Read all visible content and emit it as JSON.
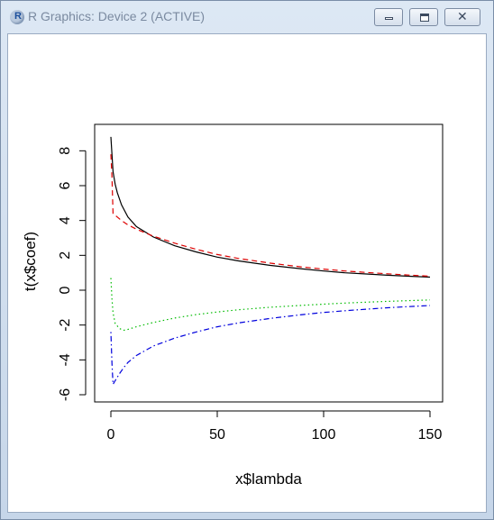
{
  "window": {
    "title": "R Graphics: Device 2 (ACTIVE)",
    "title_icon": "r-logo-icon",
    "buttons": {
      "minimize": "minimize-icon",
      "maximize": "maximize-icon",
      "close": "close-icon"
    }
  },
  "chart_data": {
    "type": "line",
    "xlabel": "x$lambda",
    "ylabel": "t(x$coef)",
    "xlim": [
      0,
      150
    ],
    "ylim": [
      -6,
      9
    ],
    "x_ticks": [
      0,
      50,
      100,
      150
    ],
    "y_ticks": [
      -6,
      -4,
      -2,
      0,
      2,
      4,
      6,
      8
    ],
    "grid": false,
    "series": [
      {
        "color": "#000000",
        "dash": "solid",
        "x": [
          0,
          1,
          2,
          3,
          5,
          8,
          12,
          20,
          30,
          40,
          50,
          60,
          75,
          90,
          100,
          110,
          120,
          130,
          140,
          150
        ],
        "y": [
          8.8,
          6.8,
          6.1,
          5.6,
          4.9,
          4.2,
          3.65,
          3.05,
          2.55,
          2.2,
          1.9,
          1.68,
          1.42,
          1.22,
          1.1,
          1.0,
          0.93,
          0.86,
          0.8,
          0.75
        ]
      },
      {
        "color": "#dd0000",
        "dash": "dashed",
        "x": [
          0,
          0.5,
          1,
          3,
          5,
          8,
          12,
          20,
          30,
          40,
          50,
          60,
          75,
          90,
          100,
          110,
          120,
          130,
          140,
          150
        ],
        "y": [
          7.8,
          6.5,
          4.4,
          4.2,
          4.0,
          3.75,
          3.5,
          3.1,
          2.7,
          2.35,
          2.05,
          1.82,
          1.55,
          1.33,
          1.21,
          1.1,
          1.02,
          0.94,
          0.87,
          0.8
        ]
      },
      {
        "color": "#00bb00",
        "dash": "dotted",
        "x": [
          0,
          0.5,
          1,
          2,
          4,
          6,
          8,
          12,
          20,
          30,
          40,
          50,
          60,
          75,
          90,
          100,
          110,
          120,
          130,
          140,
          150
        ],
        "y": [
          0.7,
          -0.5,
          -1.3,
          -1.9,
          -2.2,
          -2.3,
          -2.25,
          -2.1,
          -1.85,
          -1.6,
          -1.4,
          -1.25,
          -1.12,
          -0.98,
          -0.87,
          -0.8,
          -0.74,
          -0.69,
          -0.64,
          -0.6,
          -0.56
        ]
      },
      {
        "color": "#0000dd",
        "dash": "dotdash",
        "x": [
          0,
          0.5,
          1,
          2,
          4,
          6,
          8,
          12,
          20,
          30,
          40,
          50,
          60,
          75,
          90,
          100,
          110,
          120,
          130,
          140,
          150
        ],
        "y": [
          -2.4,
          -4.2,
          -5.4,
          -5.2,
          -4.8,
          -4.45,
          -4.15,
          -3.75,
          -3.2,
          -2.75,
          -2.4,
          -2.1,
          -1.88,
          -1.62,
          -1.4,
          -1.28,
          -1.18,
          -1.09,
          -1.01,
          -0.94,
          -0.88
        ]
      }
    ]
  }
}
